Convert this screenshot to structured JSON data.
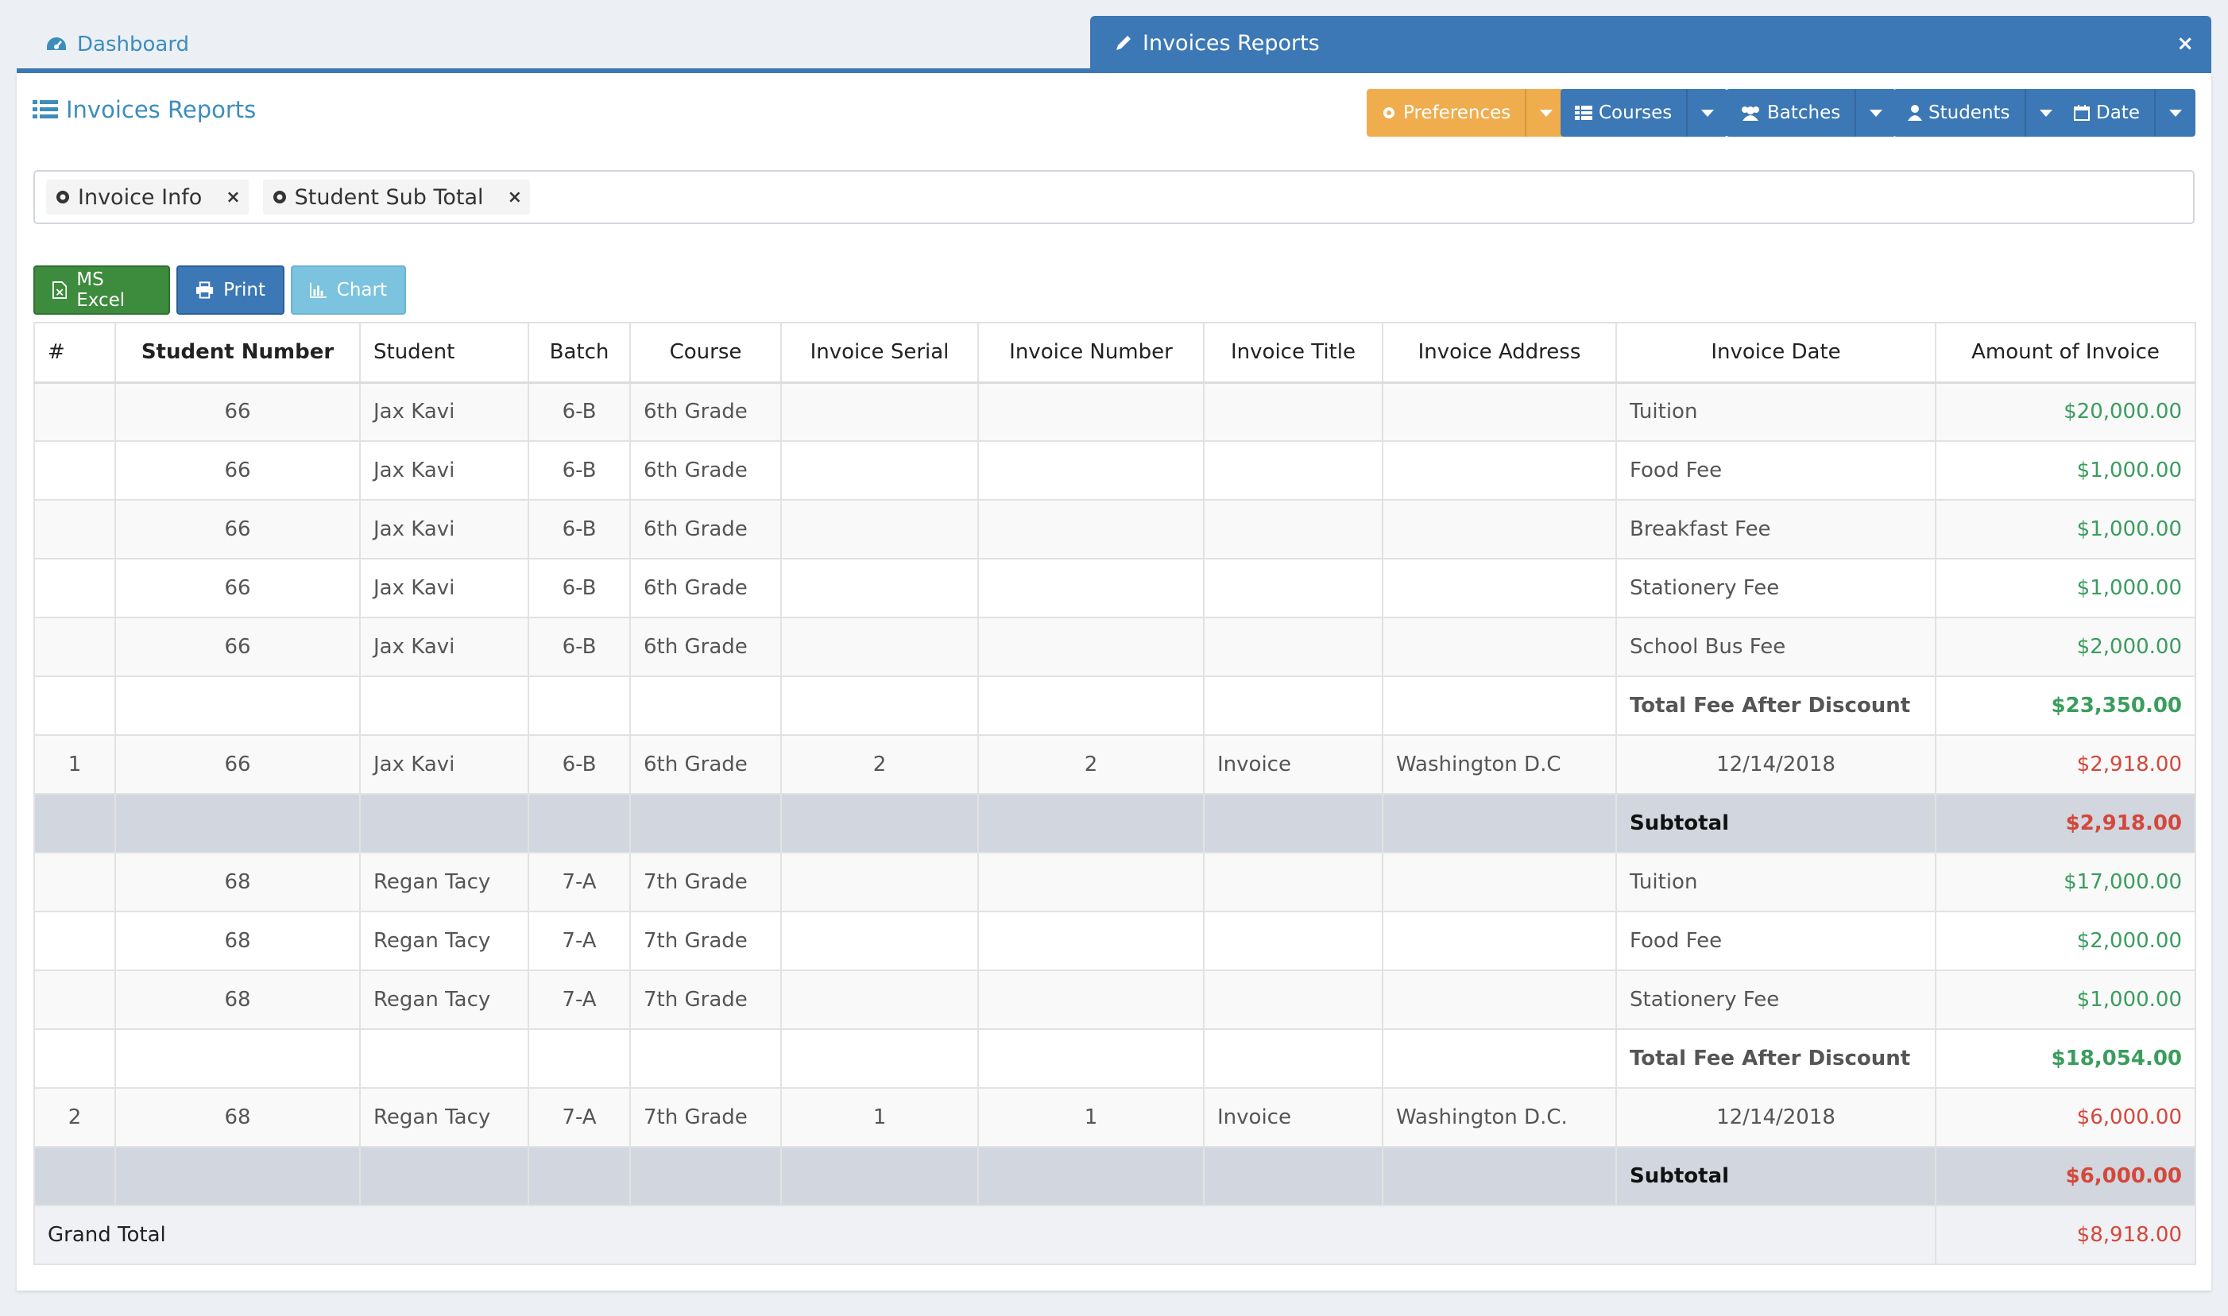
{
  "tabs": {
    "dashboard_label": "Dashboard",
    "active_label": "Invoices Reports",
    "close_glyph": "×"
  },
  "box": {
    "title": "Invoices Reports"
  },
  "filters": {
    "preferences": "Preferences",
    "courses": "Courses",
    "batches": "Batches",
    "students": "Students",
    "date": "Date"
  },
  "tags": [
    {
      "label": "Invoice Info",
      "remove": "×"
    },
    {
      "label": "Student Sub Total",
      "remove": "×"
    }
  ],
  "actions": {
    "excel": "MS Excel",
    "print": "Print",
    "chart": "Chart"
  },
  "colors": {
    "primary": "#3c78b5",
    "warning": "#f0ad4e",
    "success": "#3d8b3d",
    "info": "#7cc3e0",
    "amount_positive": "#3a9d5d",
    "amount_invoice": "#d4483b"
  },
  "table": {
    "headers": [
      "#",
      "Student Number",
      "Student",
      "Batch",
      "Course",
      "Invoice Serial",
      "Invoice Number",
      "Invoice Title",
      "Invoice Address",
      "Invoice Date",
      "Amount of Invoice"
    ],
    "rows": [
      {
        "type": "fee",
        "num": "",
        "student_number": "66",
        "student": "Jax Kavi",
        "batch": "6-B",
        "course": "6th Grade",
        "serial": "",
        "invoice_number": "",
        "title": "",
        "address": "",
        "date": "Tuition",
        "amount": "$20,000.00"
      },
      {
        "type": "fee",
        "num": "",
        "student_number": "66",
        "student": "Jax Kavi",
        "batch": "6-B",
        "course": "6th Grade",
        "serial": "",
        "invoice_number": "",
        "title": "",
        "address": "",
        "date": "Food Fee",
        "amount": "$1,000.00"
      },
      {
        "type": "fee",
        "num": "",
        "student_number": "66",
        "student": "Jax Kavi",
        "batch": "6-B",
        "course": "6th Grade",
        "serial": "",
        "invoice_number": "",
        "title": "",
        "address": "",
        "date": "Breakfast Fee",
        "amount": "$1,000.00"
      },
      {
        "type": "fee",
        "num": "",
        "student_number": "66",
        "student": "Jax Kavi",
        "batch": "6-B",
        "course": "6th Grade",
        "serial": "",
        "invoice_number": "",
        "title": "",
        "address": "",
        "date": "Stationery Fee",
        "amount": "$1,000.00"
      },
      {
        "type": "fee",
        "num": "",
        "student_number": "66",
        "student": "Jax Kavi",
        "batch": "6-B",
        "course": "6th Grade",
        "serial": "",
        "invoice_number": "",
        "title": "",
        "address": "",
        "date": "School Bus Fee",
        "amount": "$2,000.00"
      },
      {
        "type": "total",
        "num": "",
        "student_number": "",
        "student": "",
        "batch": "",
        "course": "",
        "serial": "",
        "invoice_number": "",
        "title": "",
        "address": "",
        "date": "Total Fee After Discount",
        "amount": "$23,350.00"
      },
      {
        "type": "invoice",
        "num": "1",
        "student_number": "66",
        "student": "Jax Kavi",
        "batch": "6-B",
        "course": "6th Grade",
        "serial": "2",
        "invoice_number": "2",
        "title": "Invoice",
        "address": "Washington D.C",
        "date": "12/14/2018",
        "amount": "$2,918.00"
      },
      {
        "type": "subtotal",
        "num": "",
        "student_number": "",
        "student": "",
        "batch": "",
        "course": "",
        "serial": "",
        "invoice_number": "",
        "title": "",
        "address": "",
        "date": "Subtotal",
        "amount": "$2,918.00"
      },
      {
        "type": "fee",
        "num": "",
        "student_number": "68",
        "student": "Regan Tacy",
        "batch": "7-A",
        "course": "7th Grade",
        "serial": "",
        "invoice_number": "",
        "title": "",
        "address": "",
        "date": "Tuition",
        "amount": "$17,000.00"
      },
      {
        "type": "fee",
        "num": "",
        "student_number": "68",
        "student": "Regan Tacy",
        "batch": "7-A",
        "course": "7th Grade",
        "serial": "",
        "invoice_number": "",
        "title": "",
        "address": "",
        "date": "Food Fee",
        "amount": "$2,000.00"
      },
      {
        "type": "fee",
        "num": "",
        "student_number": "68",
        "student": "Regan Tacy",
        "batch": "7-A",
        "course": "7th Grade",
        "serial": "",
        "invoice_number": "",
        "title": "",
        "address": "",
        "date": "Stationery Fee",
        "amount": "$1,000.00"
      },
      {
        "type": "total",
        "num": "",
        "student_number": "",
        "student": "",
        "batch": "",
        "course": "",
        "serial": "",
        "invoice_number": "",
        "title": "",
        "address": "",
        "date": "Total Fee After Discount",
        "amount": "$18,054.00"
      },
      {
        "type": "invoice",
        "num": "2",
        "student_number": "68",
        "student": "Regan Tacy",
        "batch": "7-A",
        "course": "7th Grade",
        "serial": "1",
        "invoice_number": "1",
        "title": "Invoice",
        "address": "Washington D.C.",
        "date": "12/14/2018",
        "amount": "$6,000.00"
      },
      {
        "type": "subtotal",
        "num": "",
        "student_number": "",
        "student": "",
        "batch": "",
        "course": "",
        "serial": "",
        "invoice_number": "",
        "title": "",
        "address": "",
        "date": "Subtotal",
        "amount": "$6,000.00"
      }
    ],
    "grand_total": {
      "label": "Grand Total",
      "amount": "$8,918.00"
    }
  }
}
